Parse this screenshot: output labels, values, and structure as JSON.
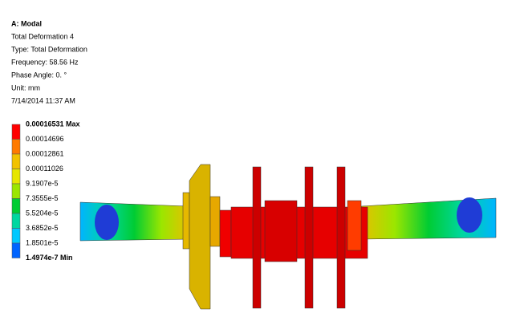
{
  "header": {
    "lines": [
      "A: Modal",
      "Total Deformation 4",
      "Type: Total Deformation",
      "Frequency: 58.56 Hz",
      "Phase Angle: 0. °",
      "Unit: mm",
      "7/14/2014 11:37 AM"
    ]
  },
  "legend": {
    "labels": [
      "0.00016531 Max",
      "0.00014696",
      "0.00012861",
      "0.00011026",
      "9.1907e-5",
      "7.3555e-5",
      "5.5204e-5",
      "3.6852e-5",
      "1.8501e-5",
      "1.4974e-7 Min"
    ],
    "colors": [
      "#ff0000",
      "#ff7a00",
      "#f2c200",
      "#e6e600",
      "#9be600",
      "#00cc33",
      "#00d7a0",
      "#00c8ff",
      "#0064ff"
    ]
  }
}
